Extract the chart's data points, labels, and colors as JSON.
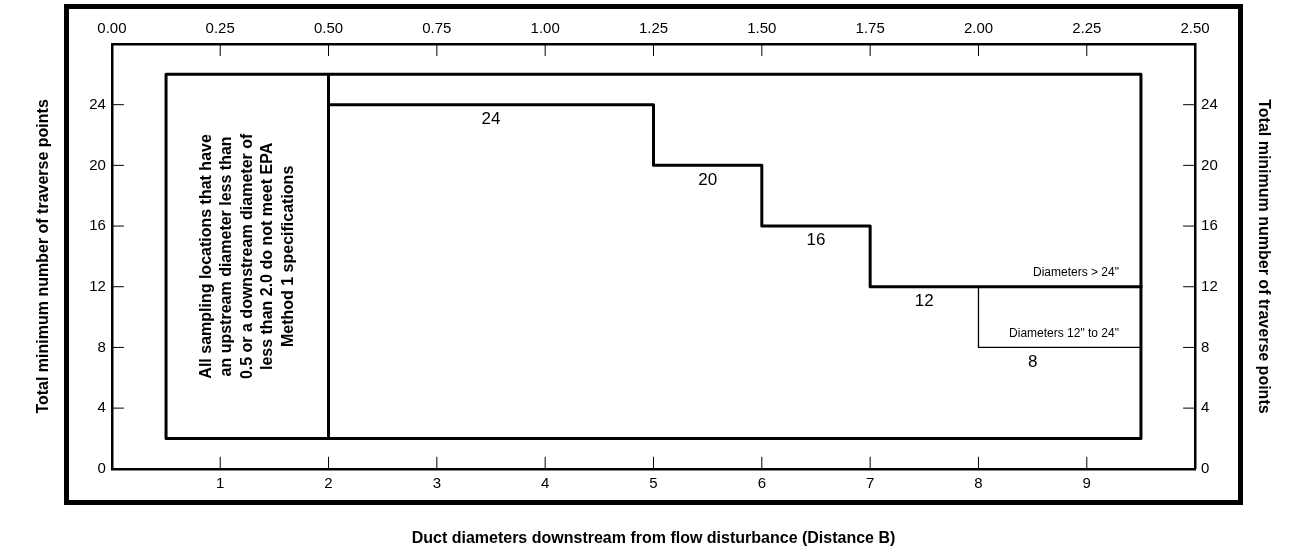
{
  "chart_data": {
    "type": "line",
    "xlabel": "Duct diameters downstream from flow disturbance (Distance B)",
    "ylabel": "Total minimum number of traverse points",
    "y2label": "Total minimum number of traverse points",
    "xlim": [
      0,
      10
    ],
    "xticks": [
      1,
      2,
      3,
      4,
      5,
      6,
      7,
      8,
      9
    ],
    "x2lim": [
      0,
      2.5
    ],
    "x2ticks": [
      {
        "value": 0,
        "label": "0.00"
      },
      {
        "value": 0.25,
        "label": "0.25"
      },
      {
        "value": 0.5,
        "label": "0.50"
      },
      {
        "value": 0.75,
        "label": "0.75"
      },
      {
        "value": 1,
        "label": "1.00"
      },
      {
        "value": 1.25,
        "label": "1.25"
      },
      {
        "value": 1.5,
        "label": "1.50"
      },
      {
        "value": 1.75,
        "label": "1.75"
      },
      {
        "value": 2,
        "label": "2.00"
      },
      {
        "value": 2.25,
        "label": "2.25"
      },
      {
        "value": 2.5,
        "label": "2.50"
      }
    ],
    "ylim": [
      0,
      28
    ],
    "yticks": [
      0,
      4,
      8,
      12,
      16,
      20,
      24
    ],
    "y2lim": [
      0,
      28
    ],
    "y2ticks": [
      0,
      4,
      8,
      12,
      16,
      20,
      24
    ],
    "marker": "none",
    "legend": false,
    "series": [
      {
        "name": "Diameters > 24\"",
        "color": "#000000",
        "x": [
          2,
          5,
          5,
          6,
          6,
          7,
          7,
          9.5
        ],
        "values": [
          24,
          24,
          20,
          20,
          16,
          16,
          12,
          12
        ]
      },
      {
        "name": "Diameters 12\" to 24\"",
        "color": "#000000",
        "x": [
          8,
          8,
          9.5
        ],
        "values": [
          12,
          8,
          8
        ]
      },
      {
        "color": "#000000",
        "x": [
          2,
          0.5,
          0.5,
          9.5,
          9.5,
          2,
          2
        ],
        "values": [
          2,
          2,
          26,
          26,
          2,
          2,
          26
        ]
      }
    ],
    "annotations": [
      "All sampling locations that have an upstream diameter less than 0.5 or a downstream diameter of less than 2.0 do not meet EPA Method 1 specifications",
      {
        "text": "24",
        "x": 3.5,
        "y": 24
      },
      {
        "text": "20",
        "x": 5.5,
        "y": 20
      },
      {
        "text": "16",
        "x": 6.5,
        "y": 16
      },
      {
        "text": "12",
        "x": 7.5,
        "y": 12
      },
      {
        "text": "8",
        "x": 8.5,
        "y": 8
      }
    ]
  }
}
